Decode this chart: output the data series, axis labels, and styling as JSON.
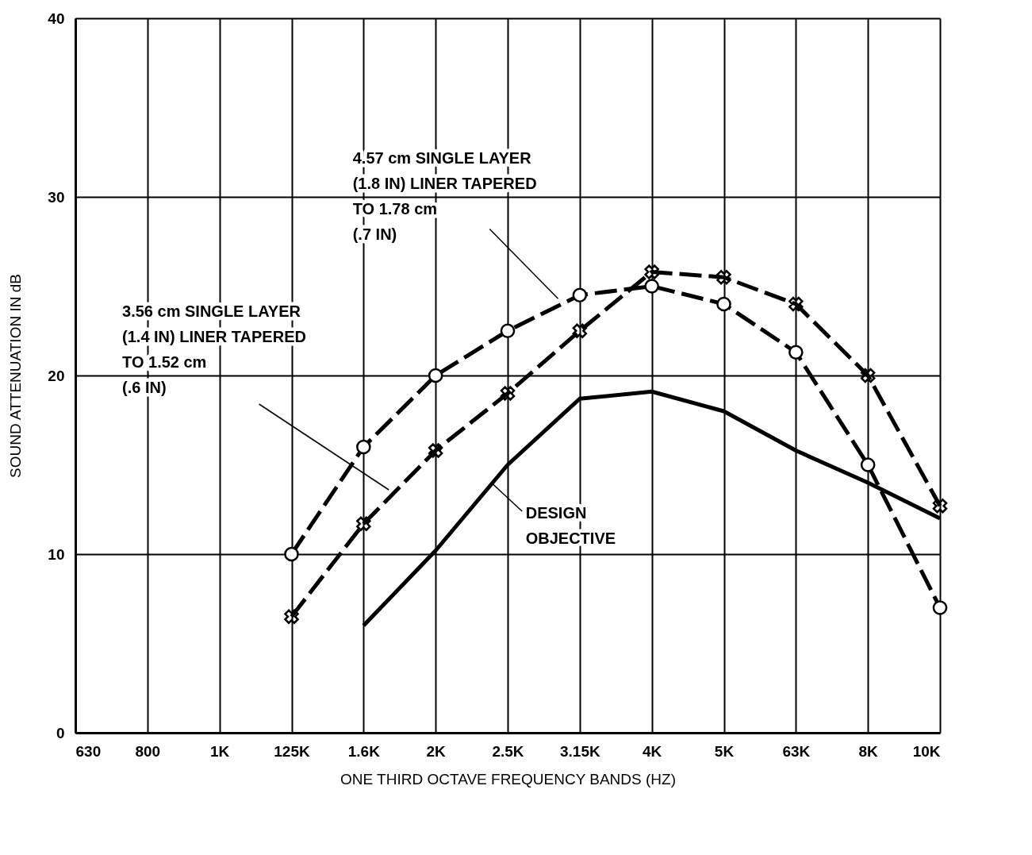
{
  "chart_data": {
    "type": "line",
    "xlabel": "ONE THIRD OCTAVE FREQUENCY BANDS (HZ)",
    "ylabel": "SOUND ATTENUATION IN dB",
    "categories": [
      "630",
      "800",
      "1K",
      "125K",
      "1.6K",
      "2K",
      "2.5K",
      "3.15K",
      "4K",
      "5K",
      "63K",
      "8K",
      "10K"
    ],
    "ylim": [
      0,
      40
    ],
    "yticks": [
      0,
      10,
      20,
      30,
      40
    ],
    "grid": true,
    "legend": false,
    "series": [
      {
        "name": "4.57 cm SINGLE LAYER\n(1.8 IN)   LINER TAPERED\nTO 1.78 cm\n(.7 IN)",
        "color": "#000000",
        "marker": "circle",
        "line_style": "dashed",
        "values": [
          null,
          null,
          null,
          10,
          16,
          20,
          22.5,
          24.5,
          25,
          24,
          21.3,
          15,
          7
        ]
      },
      {
        "name": "3.56 cm SINGLE LAYER\n(1.4 IN)   LINER TAPERED\nTO 1.52 cm\n(.6 IN)",
        "color": "#000000",
        "marker": "cross",
        "line_style": "dashed",
        "values": [
          null,
          null,
          null,
          6.5,
          11.7,
          15.8,
          19,
          22.5,
          25.8,
          25.5,
          24,
          20,
          12.7
        ]
      },
      {
        "name": "DESIGN\nOBJECTIVE",
        "color": "#000000",
        "marker": "none",
        "line_style": "solid",
        "values": [
          null,
          null,
          null,
          null,
          6,
          10.2,
          15,
          18.7,
          19.1,
          18,
          15.8,
          14,
          12
        ]
      }
    ]
  }
}
